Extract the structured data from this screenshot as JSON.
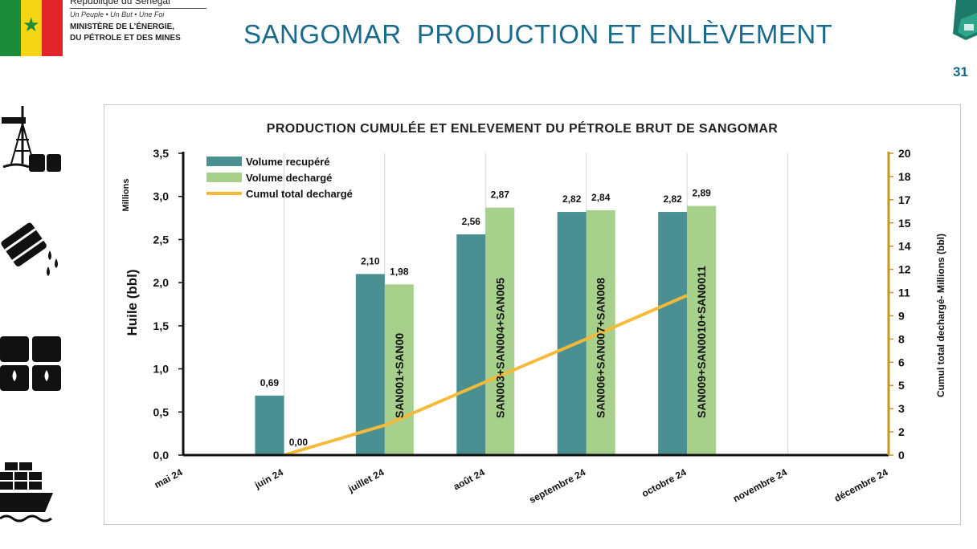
{
  "header": {
    "republic": "République du Sénégal",
    "motto": "Un Peuple  •  Un But  •  Une Foi",
    "ministry_line1": "MINISTÈRE DE L’ÉNERGIE,",
    "ministry_line2": "DU PÉTROLE ET DES MINES",
    "title": "SANGOMAR  PRODUCTION ET ENLÈVEMENT",
    "page_number": "31"
  },
  "colors": {
    "recovered": "#4a8f92",
    "discharged": "#a7d08c",
    "cumulative": "#f4bb3a",
    "title": "#1a6a8c",
    "right_axis": "#c7961f"
  },
  "chart_data": {
    "type": "bar",
    "title": "PRODUCTION CUMULÉE ET ENLEVEMENT DU PÉTROLE BRUT DE SANGOMAR",
    "categories": [
      "mai 24",
      "juin 24",
      "juillet 24",
      "août 24",
      "septembre 24",
      "octobre 24",
      "novembre 24",
      "décembre 24"
    ],
    "ylabel": "Huile (bbl)",
    "y_unit": "Millions",
    "ylim": [
      0,
      3.5
    ],
    "y_ticks": [
      "0,0",
      "0,5",
      "1,0",
      "1,5",
      "2,0",
      "2,5",
      "3,0",
      "3,5"
    ],
    "y2label": "Cumul total dechargé-  Millions (bbl)",
    "y2lim": [
      0,
      20
    ],
    "y2_ticks": [
      "0",
      "2",
      "3",
      "5",
      "6",
      "8",
      "9",
      "11",
      "12",
      "14",
      "15",
      "17",
      "18",
      "20"
    ],
    "series": [
      {
        "name": "Volume recupéré",
        "type": "bar",
        "values": [
          null,
          0.69,
          2.1,
          2.56,
          2.82,
          2.82,
          null,
          null
        ],
        "labels": [
          "",
          "0,69",
          "2,10",
          "2,56",
          "2,82",
          "2,82",
          "",
          ""
        ]
      },
      {
        "name": "Volume dechargé",
        "type": "bar",
        "values": [
          null,
          0.0,
          1.98,
          2.87,
          2.84,
          2.89,
          null,
          null
        ],
        "labels": [
          "",
          "0,00",
          "1,98",
          "2,87",
          "2,84",
          "2,89",
          "",
          ""
        ]
      },
      {
        "name": "Cumul total dechargé",
        "type": "line",
        "axis": "right",
        "values": [
          null,
          0.0,
          1.98,
          4.85,
          7.69,
          10.58,
          null,
          null
        ]
      }
    ],
    "bar_annotations": [
      "",
      "",
      "SAN001+SAN00",
      "SAN003+SAN004+SAN005",
      "SAN006+SAN007+SAN008",
      "SAN009+SAN0010+SAN0011",
      "",
      ""
    ],
    "legend_position": "top-left"
  }
}
